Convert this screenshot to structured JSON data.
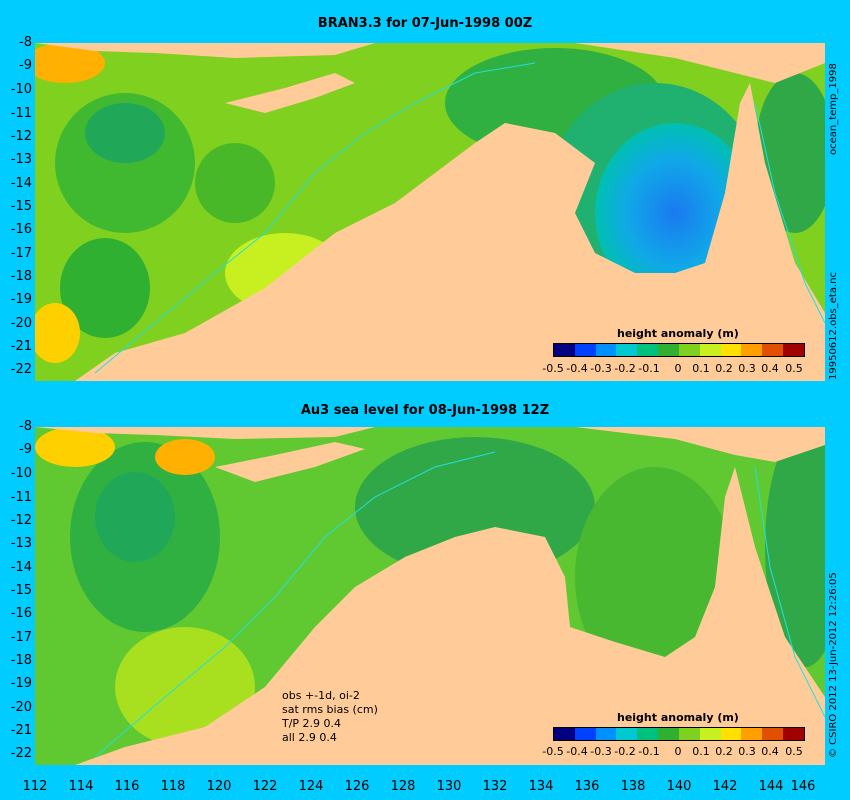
{
  "top_panel": {
    "title": "BRAN3.3 for 07-Jun-1998 00Z",
    "side_label_top": "ocean_temp_1998",
    "side_label_bottom": "19950612.obs_eta.nc",
    "legend_title": "height anomaly (m)"
  },
  "bottom_panel": {
    "title": "Au3 sea level  for 08-Jun-1998 12Z",
    "side_label": "© CSIRO 2012  13-Jun-2012 12:26:05",
    "legend_title": "height anomaly (m)",
    "obs_lines": [
      "obs +-1d, oi-2",
      "sat rms bias (cm)",
      "T/P  2.9 0.4",
      "all 2.9 0.4"
    ]
  },
  "y_ticks": [
    "-8",
    "-9",
    "-10",
    "-11",
    "-12",
    "-13",
    "-14",
    "-15",
    "-16",
    "-17",
    "-18",
    "-19",
    "-20",
    "-21",
    "-22"
  ],
  "x_ticks": [
    "112",
    "114",
    "116",
    "118",
    "120",
    "122",
    "124",
    "126",
    "128",
    "130",
    "132",
    "134",
    "136",
    "138",
    "140",
    "142",
    "144",
    "146"
  ],
  "legend_ticks": [
    "-0.5",
    "-0.4",
    "-0.3",
    "-0.2",
    "-0.1",
    "0",
    "0.1",
    "0.2",
    "0.3",
    "0.4",
    "0.5"
  ],
  "colors": {
    "background": "#00ccff",
    "land": "#ffcc99",
    "scale": [
      "#000080",
      "#0040ff",
      "#0090ff",
      "#00c8d0",
      "#00c080",
      "#30b030",
      "#80d020",
      "#c8f020",
      "#ffe000",
      "#ffa000",
      "#e05000",
      "#a00000"
    ]
  }
}
